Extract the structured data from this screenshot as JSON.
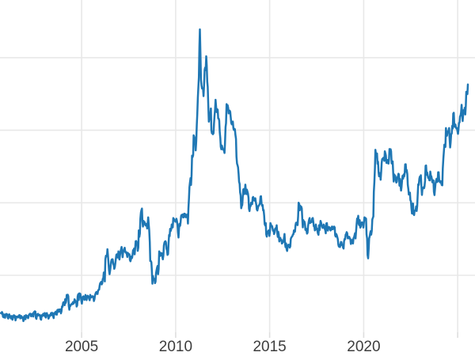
{
  "chart_style": {
    "background": "#ffffff",
    "line_color": "#1f77b4",
    "line_width": 2.5,
    "grid_color": "#e8e8e8",
    "tick_mark_color": "#dedede",
    "tick_label_color": "#3d3d3d",
    "tick_label_font_size": 19
  },
  "chart_data": {
    "type": "line",
    "title": "",
    "xlabel": "",
    "ylabel": "",
    "legend": "off",
    "grid": "on",
    "xlim": [
      2000.66,
      2025.92
    ],
    "ylim": [
      2.15,
      47.95
    ],
    "x_ticks": [
      {
        "year": 2005,
        "label": "2005"
      },
      {
        "year": 2010,
        "label": "2010"
      },
      {
        "year": 2015,
        "label": "2015"
      },
      {
        "year": 2020,
        "label": "2020"
      },
      {
        "year": 2025,
        "label": ""
      }
    ],
    "y_gridline_values": [
      10,
      20,
      30,
      40
    ],
    "series": [
      {
        "name": "",
        "start_year": 2000,
        "start_month": 9,
        "interval_months": 1,
        "values": [
          4.8,
          4.8,
          4.6,
          4.6,
          4.6,
          4.5,
          4.4,
          4.4,
          4.4,
          4.4,
          4.3,
          4.2,
          4.5,
          4.4,
          4.2,
          4.4,
          4.5,
          4.4,
          4.6,
          4.6,
          4.7,
          4.9,
          5.0,
          4.6,
          4.5,
          4.4,
          4.5,
          4.7,
          4.8,
          4.7,
          4.5,
          4.5,
          4.8,
          4.6,
          4.8,
          5.0,
          5.2,
          5.0,
          5.3,
          5.7,
          6.3,
          6.7,
          7.3,
          7.1,
          5.8,
          6.0,
          6.3,
          6.7,
          6.4,
          7.1,
          7.5,
          7.0,
          6.7,
          7.0,
          7.3,
          7.1,
          7.0,
          7.3,
          7.0,
          7.0,
          7.2,
          7.7,
          7.9,
          8.6,
          9.1,
          9.5,
          10.4,
          12.7,
          13.6,
          10.7,
          11.2,
          12.2,
          11.4,
          11.6,
          12.9,
          13.3,
          12.8,
          13.9,
          13.2,
          13.8,
          13.2,
          13.1,
          12.9,
          12.2,
          12.8,
          13.7,
          14.7,
          14.3,
          16.2,
          17.8,
          19.2,
          17.5,
          17.0,
          17.1,
          18.0,
          14.6,
          11.8,
          9.9,
          9.5,
          10.3,
          11.3,
          13.3,
          13.1,
          12.6,
          14.1,
          14.7,
          13.4,
          14.4,
          16.4,
          17.0,
          17.9,
          17.6,
          17.8,
          15.9,
          17.1,
          18.2,
          18.4,
          18.5,
          18.0,
          18.4,
          20.6,
          23.4,
          26.5,
          29.3,
          28.5,
          30.8,
          36.0,
          43.9,
          36.2,
          35.7,
          38.3,
          40.2,
          36.0,
          31.6,
          33.0,
          29.8,
          30.9,
          34.2,
          32.9,
          31.6,
          28.9,
          27.9,
          27.3,
          28.2,
          33.6,
          33.1,
          32.7,
          31.0,
          31.2,
          30.2,
          28.8,
          25.2,
          22.9,
          21.0,
          19.7,
          21.9,
          22.5,
          21.8,
          20.7,
          19.6,
          19.9,
          20.8,
          20.6,
          19.7,
          19.3,
          19.8,
          20.9,
          19.7,
          18.2,
          17.2,
          15.8,
          16.2,
          17.2,
          16.8,
          16.2,
          16.4,
          16.9,
          16.0,
          15.0,
          14.9,
          14.7,
          15.7,
          14.4,
          14.0,
          14.1,
          15.0,
          15.4,
          16.2,
          16.9,
          17.3,
          20.0,
          19.6,
          19.2,
          17.6,
          17.1,
          16.2,
          16.8,
          17.9,
          17.4,
          17.9,
          16.8,
          17.0,
          16.1,
          16.9,
          17.5,
          16.8,
          17.0,
          16.2,
          17.2,
          16.6,
          16.4,
          16.6,
          16.4,
          16.6,
          15.7,
          15.0,
          14.2,
          14.6,
          14.2,
          14.7,
          15.6,
          15.8,
          15.3,
          15.0,
          14.6,
          15.1,
          15.8,
          17.1,
          18.2,
          17.6,
          17.1,
          17.2,
          18.0,
          17.8,
          12.8,
          15.1,
          16.1,
          17.7,
          21.5,
          27.3,
          26.8,
          24.2,
          24.1,
          25.5,
          26.2,
          27.1,
          25.5,
          25.9,
          27.4,
          27.1,
          25.7,
          23.9,
          23.1,
          23.5,
          23.9,
          22.4,
          23.1,
          23.9,
          25.3,
          24.5,
          21.9,
          21.4,
          19.2,
          19.9,
          18.9,
          19.5,
          21.3,
          23.3,
          23.8,
          21.9,
          22.0,
          25.1,
          24.2,
          23.5,
          24.3,
          23.3,
          23.1,
          21.8,
          23.3,
          24.2,
          22.9,
          22.7,
          24.7,
          28.0,
          30.3,
          29.8,
          30.3,
          28.3,
          30.6,
          32.4,
          30.8,
          30.3,
          30.1,
          31.9,
          33.5,
          32.2,
          33.1,
          35.3,
          36.3
        ]
      }
    ]
  }
}
